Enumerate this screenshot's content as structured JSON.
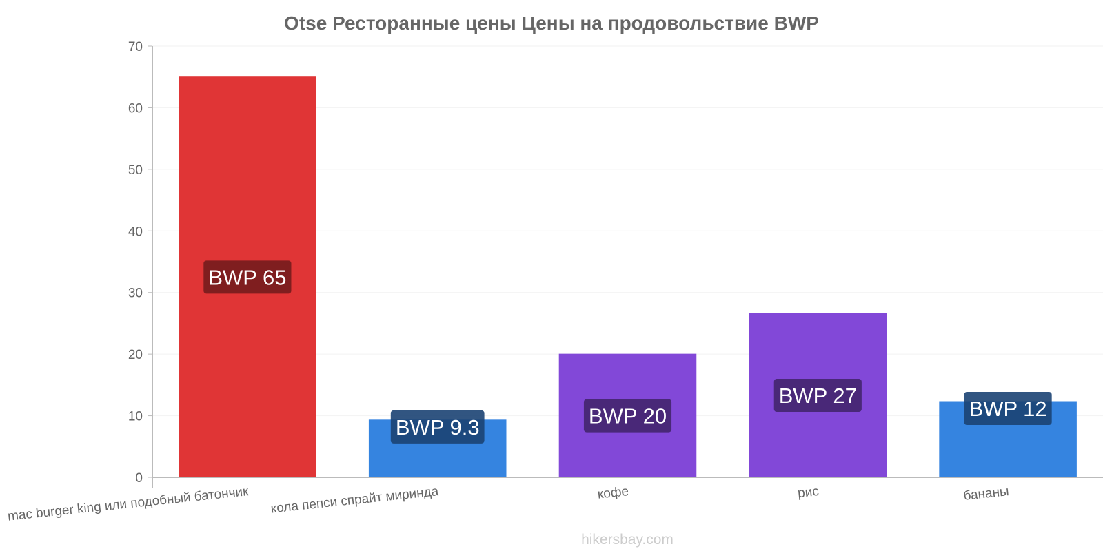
{
  "chart_data": {
    "type": "bar",
    "title": "Otse Ресторанные цены Цены на продовольствие BWP",
    "xlabel": "",
    "ylabel": "",
    "ylim": [
      0,
      70
    ],
    "yticks": [
      0,
      10,
      20,
      30,
      40,
      50,
      60,
      70
    ],
    "grid": true,
    "categories": [
      "mac burger king или подобный батончик",
      "кола пепси спрайт миринда",
      "кофе",
      "рис",
      "бананы"
    ],
    "values": [
      65,
      9.3,
      20,
      26.6,
      12.3
    ],
    "data_labels": [
      "BWP 65",
      "BWP 9.3",
      "BWP 20",
      "BWP 27",
      "BWP 12"
    ],
    "colors": [
      "#e03536",
      "#3584e0",
      "#8248d8",
      "#8248d8",
      "#3584e0"
    ],
    "label_bg_colors": [
      "#741c1d",
      "#1b4273",
      "#42256e",
      "#42256e",
      "#1b4273"
    ]
  },
  "watermark": "hikersbay.com"
}
